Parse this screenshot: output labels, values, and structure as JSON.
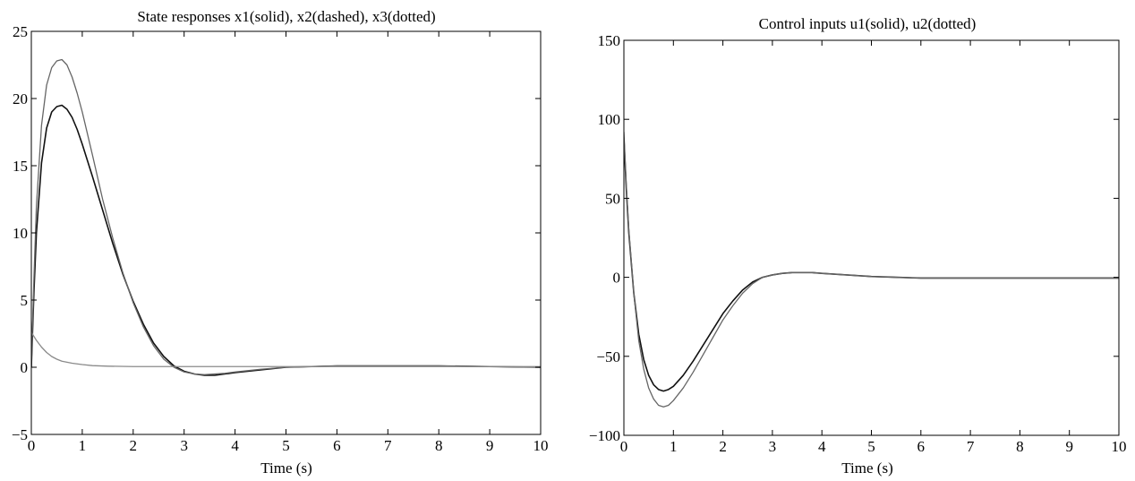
{
  "chart_data": [
    {
      "type": "line",
      "title": "State responses x1(solid), x2(dashed), x3(dotted)",
      "xlabel": "Time (s)",
      "ylabel": "",
      "xlim": [
        0,
        10
      ],
      "ylim": [
        -5,
        25
      ],
      "xticks": [
        0,
        1,
        2,
        3,
        4,
        5,
        6,
        7,
        8,
        9,
        10
      ],
      "yticks": [
        -5,
        0,
        5,
        10,
        15,
        20,
        25
      ],
      "grid": false,
      "series": [
        {
          "color": "#111111",
          "x": [
            0,
            0.05,
            0.1,
            0.2,
            0.3,
            0.4,
            0.5,
            0.6,
            0.7,
            0.8,
            0.9,
            1.0,
            1.2,
            1.4,
            1.6,
            1.8,
            2.0,
            2.2,
            2.4,
            2.6,
            2.8,
            3.0,
            3.2,
            3.4,
            3.6,
            3.8,
            4.0,
            4.5,
            5.0,
            5.5,
            6.0,
            7.0,
            8.0,
            9.0,
            10.0
          ],
          "values": [
            0,
            5.5,
            10,
            15.2,
            17.8,
            19.0,
            19.4,
            19.5,
            19.2,
            18.6,
            17.7,
            16.6,
            14.2,
            11.7,
            9.2,
            6.9,
            4.9,
            3.2,
            1.8,
            0.8,
            0.1,
            -0.3,
            -0.5,
            -0.6,
            -0.6,
            -0.5,
            -0.4,
            -0.2,
            0,
            0.05,
            0.1,
            0.1,
            0.1,
            0.05,
            0
          ]
        },
        {
          "color": "#666666",
          "x": [
            0,
            0.05,
            0.1,
            0.2,
            0.3,
            0.4,
            0.5,
            0.6,
            0.7,
            0.8,
            0.9,
            1.0,
            1.2,
            1.4,
            1.6,
            1.8,
            2.0,
            2.2,
            2.4,
            2.6,
            2.8,
            3.0,
            3.2,
            3.4,
            3.6,
            3.8,
            4.0,
            4.5,
            5.0,
            5.5,
            6.0,
            7.0,
            8.0,
            9.0,
            10.0
          ],
          "values": [
            0,
            6.5,
            12,
            18.0,
            21.0,
            22.3,
            22.8,
            22.9,
            22.5,
            21.6,
            20.4,
            19.0,
            15.8,
            12.5,
            9.6,
            7.0,
            4.8,
            3.0,
            1.6,
            0.6,
            0,
            -0.35,
            -0.5,
            -0.55,
            -0.5,
            -0.45,
            -0.35,
            -0.15,
            0,
            0.05,
            0.1,
            0.1,
            0.1,
            0.05,
            0
          ]
        },
        {
          "color": "#8a8a8a",
          "x": [
            0,
            0.1,
            0.2,
            0.3,
            0.4,
            0.5,
            0.6,
            0.8,
            1.0,
            1.2,
            1.5,
            2.0,
            3.0,
            4.0,
            5.0,
            6.0,
            7.0,
            8.0,
            9.0,
            10.0
          ],
          "values": [
            2.6,
            2.0,
            1.5,
            1.1,
            0.8,
            0.6,
            0.45,
            0.3,
            0.2,
            0.12,
            0.08,
            0.05,
            0.05,
            0.05,
            0.05,
            0.05,
            0.05,
            0.05,
            0.05,
            0.05
          ]
        }
      ]
    },
    {
      "type": "line",
      "title": "Control inputs u1(solid), u2(dotted)",
      "xlabel": "Time (s)",
      "ylabel": "",
      "xlim": [
        0,
        10
      ],
      "ylim": [
        -100,
        150
      ],
      "xticks": [
        0,
        1,
        2,
        3,
        4,
        5,
        6,
        7,
        8,
        9,
        10
      ],
      "yticks": [
        -100,
        -50,
        0,
        50,
        100,
        150
      ],
      "grid": false,
      "series": [
        {
          "color": "#111111",
          "x": [
            0,
            0.05,
            0.1,
            0.2,
            0.3,
            0.4,
            0.5,
            0.6,
            0.7,
            0.8,
            0.9,
            1.0,
            1.2,
            1.4,
            1.6,
            1.8,
            2.0,
            2.2,
            2.4,
            2.6,
            2.8,
            3.0,
            3.2,
            3.4,
            3.6,
            3.8,
            4.0,
            4.5,
            5.0,
            5.5,
            6.0,
            7.0,
            8.0,
            9.0,
            10.0
          ],
          "values": [
            88,
            55,
            28,
            -10,
            -36,
            -52,
            -62,
            -68,
            -71,
            -72,
            -71,
            -69,
            -62,
            -53,
            -43,
            -33,
            -23,
            -15,
            -8,
            -3,
            0,
            1.5,
            2.5,
            3,
            3,
            3,
            2.5,
            1.5,
            0.5,
            0,
            -0.5,
            -0.5,
            -0.5,
            -0.5,
            -0.5
          ]
        },
        {
          "color": "#666666",
          "x": [
            0,
            0.05,
            0.1,
            0.2,
            0.3,
            0.4,
            0.5,
            0.6,
            0.7,
            0.8,
            0.9,
            1.0,
            1.2,
            1.4,
            1.6,
            1.8,
            2.0,
            2.2,
            2.4,
            2.6,
            2.8,
            3.0,
            3.2,
            3.4,
            3.6,
            3.8,
            4.0,
            4.5,
            5.0,
            5.5,
            6.0,
            7.0,
            8.0,
            9.0,
            10.0
          ],
          "values": [
            92,
            58,
            30,
            -10,
            -40,
            -58,
            -70,
            -77,
            -81,
            -82,
            -81,
            -78,
            -70,
            -60,
            -49,
            -38,
            -27,
            -18,
            -10,
            -4,
            0,
            1.5,
            2.5,
            3,
            3,
            3,
            2.5,
            1.5,
            0.5,
            0,
            -0.5,
            -0.5,
            -0.5,
            -0.5,
            -0.5
          ]
        }
      ]
    }
  ]
}
